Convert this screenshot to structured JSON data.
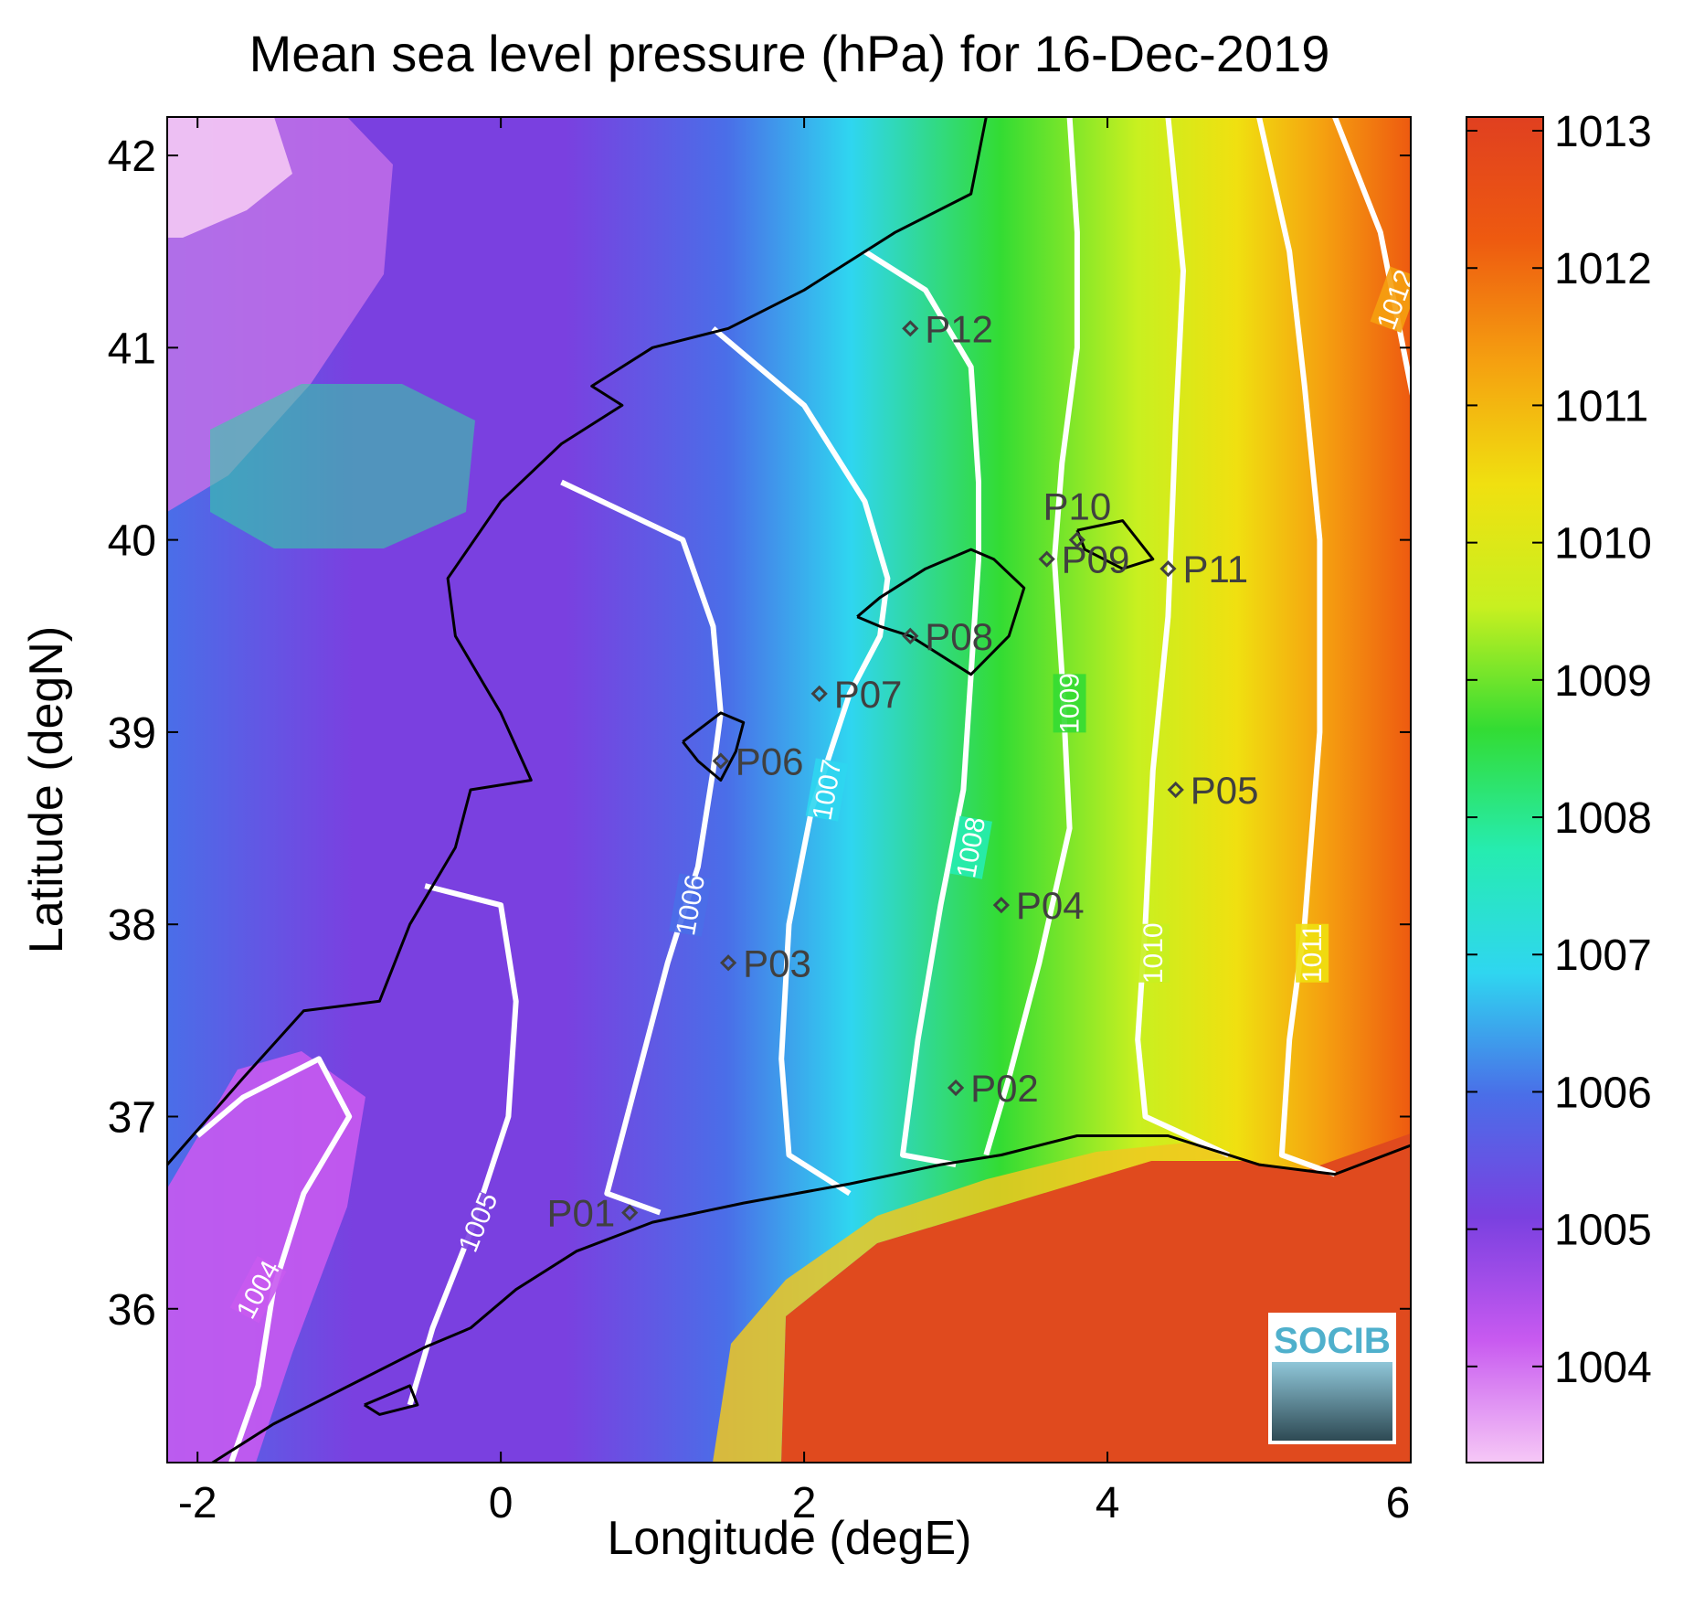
{
  "title": "Mean sea level pressure (hPa) for 16-Dec-2019",
  "xlabel": "Longitude (degE)",
  "ylabel": "Latitude (degN)",
  "xlim": [
    -2.2,
    6.0
  ],
  "ylim": [
    35.2,
    42.2
  ],
  "xticks": [
    -2,
    0,
    2,
    4,
    6
  ],
  "yticks": [
    36,
    37,
    38,
    39,
    40,
    41,
    42
  ],
  "colorbar": {
    "range": [
      1003.3,
      1013.1
    ],
    "ticks": [
      1004,
      1005,
      1006,
      1007,
      1008,
      1009,
      1010,
      1011,
      1012,
      1013
    ],
    "colors": [
      "#f6c8f6",
      "#c85af0",
      "#7a40e0",
      "#4a6ee8",
      "#2fd6f0",
      "#26ecb0",
      "#33dc33",
      "#c8f020",
      "#f0e010",
      "#f5a010",
      "#ee5a10",
      "#e04020"
    ]
  },
  "contour_levels": [
    1004,
    1005,
    1006,
    1007,
    1008,
    1009,
    1010,
    1011,
    1012
  ],
  "contour_color": "#ffffff",
  "coastline_color": "#000000",
  "points": [
    {
      "id": "P01",
      "lon": 0.85,
      "lat": 36.5
    },
    {
      "id": "P02",
      "lon": 3.0,
      "lat": 37.15
    },
    {
      "id": "P03",
      "lon": 1.5,
      "lat": 37.8
    },
    {
      "id": "P04",
      "lon": 3.3,
      "lat": 38.1
    },
    {
      "id": "P05",
      "lon": 4.45,
      "lat": 38.7
    },
    {
      "id": "P06",
      "lon": 1.45,
      "lat": 38.85
    },
    {
      "id": "P07",
      "lon": 2.1,
      "lat": 39.2
    },
    {
      "id": "P08",
      "lon": 2.7,
      "lat": 39.5
    },
    {
      "id": "P09",
      "lon": 3.6,
      "lat": 39.9
    },
    {
      "id": "P10",
      "lon": 3.8,
      "lat": 40.0
    },
    {
      "id": "P11",
      "lon": 4.4,
      "lat": 39.85
    },
    {
      "id": "P12",
      "lon": 2.7,
      "lat": 41.1
    }
  ],
  "logo": {
    "text": "SOCIB"
  }
}
